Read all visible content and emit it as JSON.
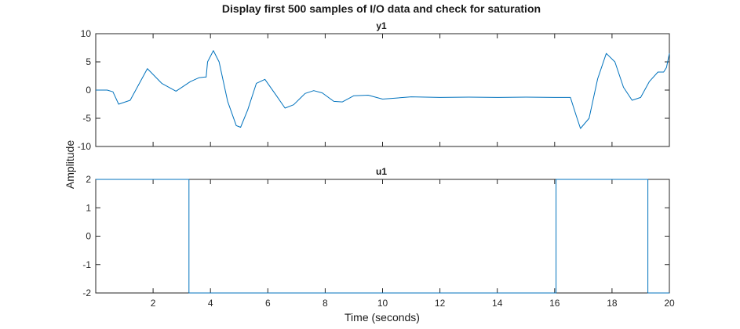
{
  "figure": {
    "title": "Display first 500 samples of I/O data and check for saturation",
    "xlabel": "Time (seconds)",
    "ylabel": "Amplitude"
  },
  "colors": {
    "line": "#0072BD",
    "axis": "#262626",
    "background": "#ffffff"
  },
  "chart_data": [
    {
      "type": "line",
      "title": "y1",
      "xlim": [
        0,
        20
      ],
      "ylim": [
        -10,
        10
      ],
      "yticks": [
        "10",
        "5",
        "0",
        "-5",
        "-10"
      ],
      "x": [
        0,
        0.4,
        0.6,
        0.8,
        1.2,
        1.8,
        2.3,
        2.8,
        3.3,
        3.6,
        3.8,
        3.85,
        3.9,
        4.1,
        4.3,
        4.6,
        4.9,
        5.05,
        5.3,
        5.6,
        5.9,
        6.3,
        6.6,
        6.9,
        7.3,
        7.6,
        7.9,
        8.3,
        8.6,
        9.0,
        9.5,
        10.0,
        10.5,
        11.0,
        12.0,
        13.0,
        14.0,
        15.0,
        16.0,
        16.55,
        16.75,
        16.9,
        17.2,
        17.5,
        17.8,
        18.1,
        18.4,
        18.7,
        19.0,
        19.3,
        19.6,
        19.8,
        19.9,
        20.0
      ],
      "y": [
        0,
        0,
        -0.3,
        -2.5,
        -1.8,
        3.8,
        1.2,
        -0.2,
        1.5,
        2.2,
        2.3,
        2.3,
        5.0,
        7.0,
        5.0,
        -2.0,
        -6.3,
        -6.6,
        -3.5,
        1.2,
        1.9,
        -1.0,
        -3.2,
        -2.6,
        -0.6,
        -0.1,
        -0.5,
        -2.0,
        -2.1,
        -1.0,
        -0.9,
        -1.6,
        -1.4,
        -1.2,
        -1.3,
        -1.25,
        -1.3,
        -1.25,
        -1.3,
        -1.3,
        -4.5,
        -6.8,
        -5.0,
        2.0,
        6.5,
        5.0,
        0.5,
        -1.8,
        -1.3,
        1.5,
        3.2,
        3.2,
        4.0,
        6.5
      ],
      "series": [
        {
          "values_ref": "y"
        }
      ]
    },
    {
      "type": "line",
      "title": "u1",
      "xlim": [
        0,
        20
      ],
      "ylim": [
        -2,
        2
      ],
      "yticks": [
        "2",
        "1",
        "0",
        "-1",
        "-2"
      ],
      "x": [
        0,
        3.25,
        3.25,
        16.05,
        16.05,
        19.25,
        19.25,
        20
      ],
      "y": [
        2,
        2,
        -2,
        -2,
        2,
        2,
        -2,
        -2
      ]
    }
  ],
  "xticks": [
    "2",
    "4",
    "6",
    "8",
    "10",
    "12",
    "14",
    "16",
    "18",
    "20"
  ]
}
